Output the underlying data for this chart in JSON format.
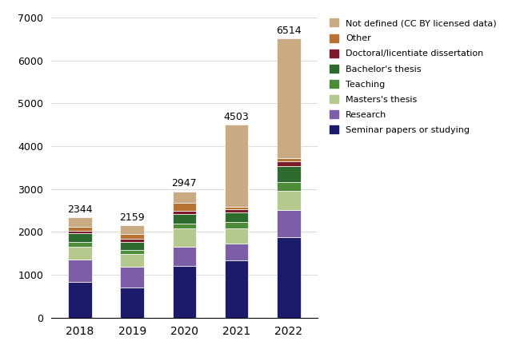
{
  "years": [
    "2018",
    "2019",
    "2020",
    "2021",
    "2022"
  ],
  "totals": [
    2344,
    2159,
    2947,
    4503,
    6514
  ],
  "categories": [
    "Seminar papers or studying",
    "Research",
    "Masters's thesis",
    "Teaching",
    "Bachelor's thesis",
    "Doctoral/licentiate dissertation",
    "Other",
    "Not defined (CC BY licensed data)"
  ],
  "colors": [
    "#1c1a6b",
    "#7b5ea7",
    "#b5c98e",
    "#4e8c3a",
    "#2d6a2d",
    "#7b1a2a",
    "#b87333",
    "#c9aa82"
  ],
  "data": {
    "Seminar papers or studying": [
      840,
      700,
      1200,
      1340,
      1880
    ],
    "Research": [
      510,
      490,
      450,
      380,
      640
    ],
    "Masters's thesis": [
      310,
      290,
      430,
      360,
      440
    ],
    "Teaching": [
      110,
      100,
      120,
      160,
      200
    ],
    "Bachelor's thesis": [
      210,
      195,
      220,
      220,
      380
    ],
    "Doctoral/licentiate dissertation": [
      50,
      75,
      75,
      75,
      115
    ],
    "Other": [
      90,
      105,
      185,
      55,
      60
    ],
    "Not defined (CC BY licensed data)": [
      224,
      204,
      267,
      1913,
      2799
    ]
  },
  "ylim": [
    0,
    7000
  ],
  "yticks": [
    0,
    1000,
    2000,
    3000,
    4000,
    5000,
    6000,
    7000
  ]
}
